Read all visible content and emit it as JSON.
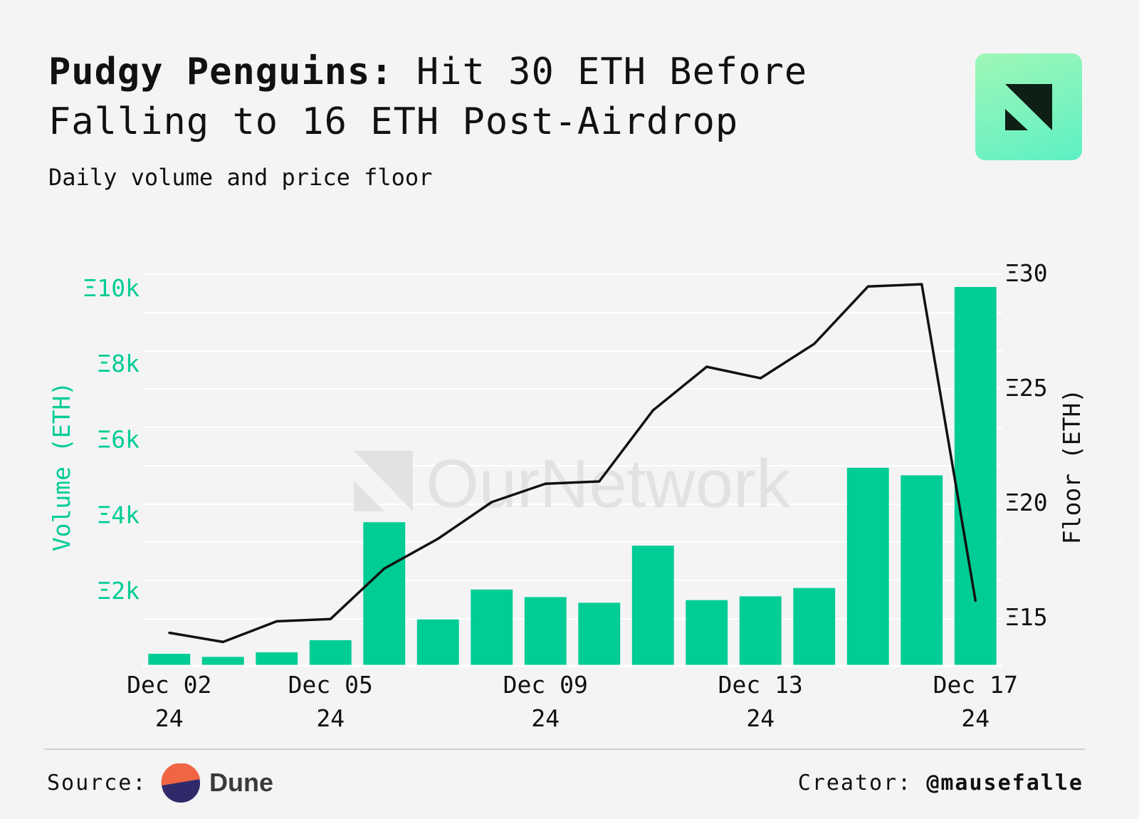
{
  "header": {
    "title_bold": "Pudgy Penguins:",
    "title_rest": " Hit 30 ETH Before Falling to 16 ETH Post-Airdrop",
    "subtitle": "Daily volume and price floor"
  },
  "colors": {
    "volume": "#00cc96",
    "floor": "#111111",
    "background": "#f4f4f4",
    "gridline": "#ffffff",
    "watermark": "#e2e2e2"
  },
  "watermark": "OurNetwork",
  "chart_data": {
    "type": "bar",
    "title": "",
    "x": [
      "2024-12-02",
      "2024-12-03",
      "2024-12-04",
      "2024-12-05",
      "2024-12-06",
      "2024-12-07",
      "2024-12-08",
      "2024-12-09",
      "2024-12-10",
      "2024-12-11",
      "2024-12-12",
      "2024-12-13",
      "2024-12-14",
      "2024-12-15",
      "2024-12-16",
      "2024-12-17"
    ],
    "x_ticks": [
      {
        "date": "2024-12-02",
        "line1": "Dec 02",
        "line2": "24"
      },
      {
        "date": "2024-12-05",
        "line1": "Dec 05",
        "line2": "24"
      },
      {
        "date": "2024-12-09",
        "line1": "Dec 09",
        "line2": "24"
      },
      {
        "date": "2024-12-13",
        "line1": "Dec 13",
        "line2": "24"
      },
      {
        "date": "2024-12-17",
        "line1": "Dec 17",
        "line2": "24"
      }
    ],
    "series": [
      {
        "name": "Volume (ETH)",
        "type": "bar",
        "axis": "left",
        "values": [
          300,
          220,
          340,
          660,
          3780,
          1210,
          2000,
          1800,
          1650,
          3160,
          1720,
          1820,
          2040,
          5220,
          5020,
          10000
        ]
      },
      {
        "name": "Floor (ETH)",
        "type": "line",
        "axis": "right",
        "values": [
          14.3,
          13.9,
          14.8,
          14.9,
          17.1,
          18.4,
          20.0,
          20.8,
          20.9,
          24.0,
          25.9,
          25.4,
          26.9,
          29.4,
          29.5,
          15.7
        ]
      }
    ],
    "y_left": {
      "label": "Volume (ETH)",
      "ticks": [
        {
          "v": 2000,
          "label": "Ξ2k"
        },
        {
          "v": 4000,
          "label": "Ξ4k"
        },
        {
          "v": 6000,
          "label": "Ξ6k"
        },
        {
          "v": 8000,
          "label": "Ξ8k"
        },
        {
          "v": 10000,
          "label": "Ξ10k"
        }
      ],
      "range": [
        0,
        10000
      ]
    },
    "y_right": {
      "label": "Floor (ETH)",
      "ticks": [
        {
          "v": 15,
          "label": "Ξ15"
        },
        {
          "v": 20,
          "label": "Ξ20"
        },
        {
          "v": 25,
          "label": "Ξ25"
        },
        {
          "v": 30,
          "label": "Ξ30"
        }
      ],
      "range": [
        13,
        30
      ]
    },
    "grid": true,
    "legend": "none"
  },
  "footer": {
    "source_label": "Source:",
    "source_name": "Dune",
    "creator_label": "Creator:",
    "creator_handle": "@mausefalle"
  }
}
